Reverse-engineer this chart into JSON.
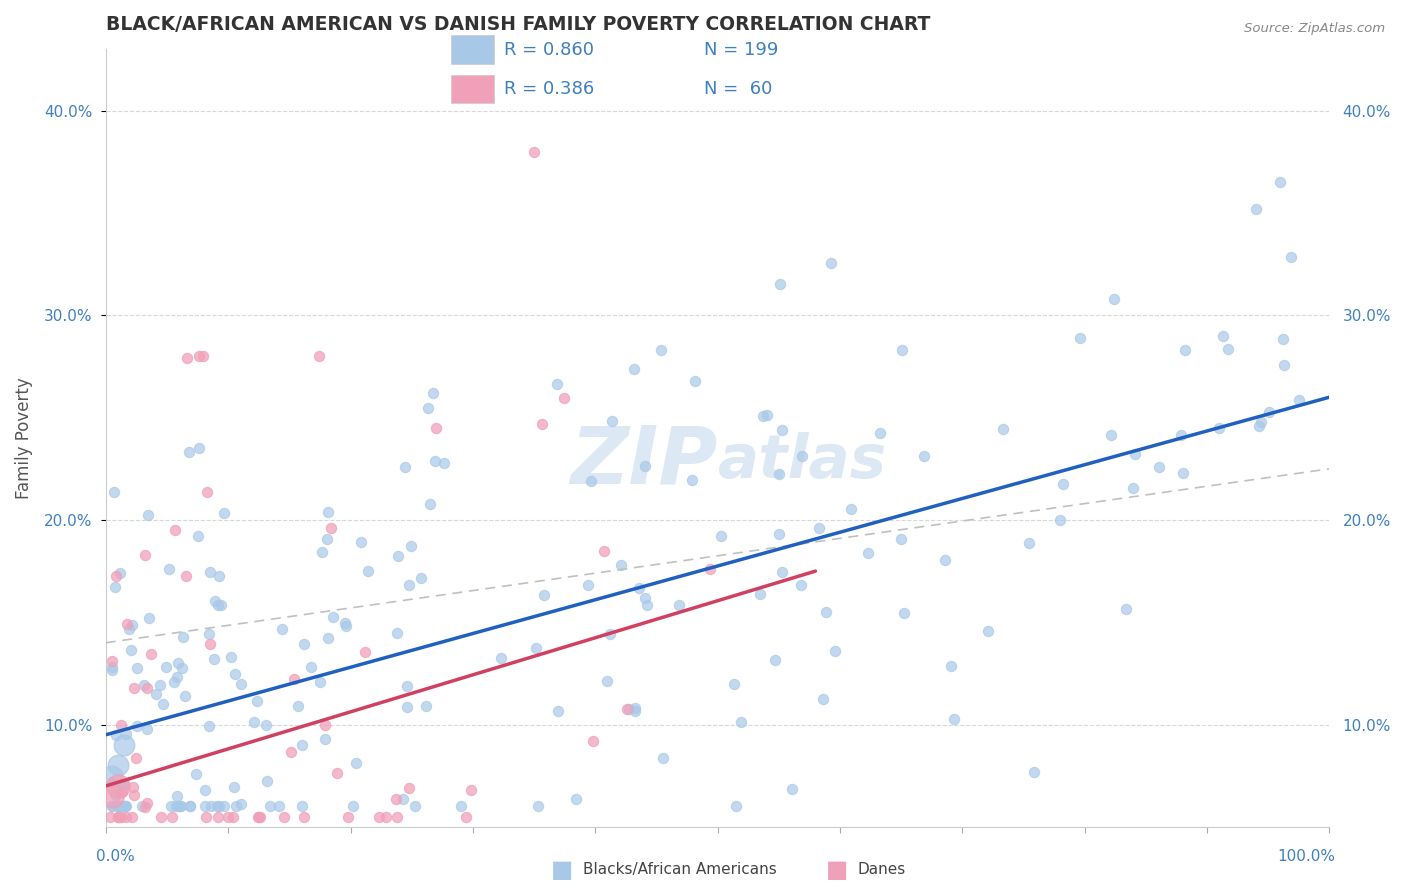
{
  "title": "BLACK/AFRICAN AMERICAN VS DANISH FAMILY POVERTY CORRELATION CHART",
  "source": "Source: ZipAtlas.com",
  "ylabel": "Family Poverty",
  "xlim": [
    0,
    100
  ],
  "ylim": [
    5,
    43
  ],
  "yticks": [
    10,
    20,
    30,
    40
  ],
  "ytick_labels": [
    "10.0%",
    "20.0%",
    "30.0%",
    "40.0%"
  ],
  "blue_color": "#a8c8e8",
  "pink_color": "#f0a0b8",
  "blue_line_color": "#2060c0",
  "pink_line_color": "#d04060",
  "dashed_line_color": "#c0c0c0",
  "legend_text_color": "#4080c0",
  "watermark_color": "#dce8f4",
  "blue_scatter_seed": 101,
  "pink_scatter_seed": 202,
  "n_blue": 199,
  "n_pink": 60,
  "blue_r": 0.86,
  "pink_r": 0.386,
  "blue_intercept": 9.5,
  "blue_slope": 0.165,
  "pink_intercept": 7.0,
  "pink_slope": 0.18,
  "blue_line": [
    0,
    100,
    9.5,
    26.0
  ],
  "pink_line": [
    0,
    58,
    7.0,
    17.5
  ],
  "dashed_line": [
    0,
    100,
    14.0,
    22.5
  ],
  "marker_size_blue": 55,
  "marker_size_pink": 55
}
